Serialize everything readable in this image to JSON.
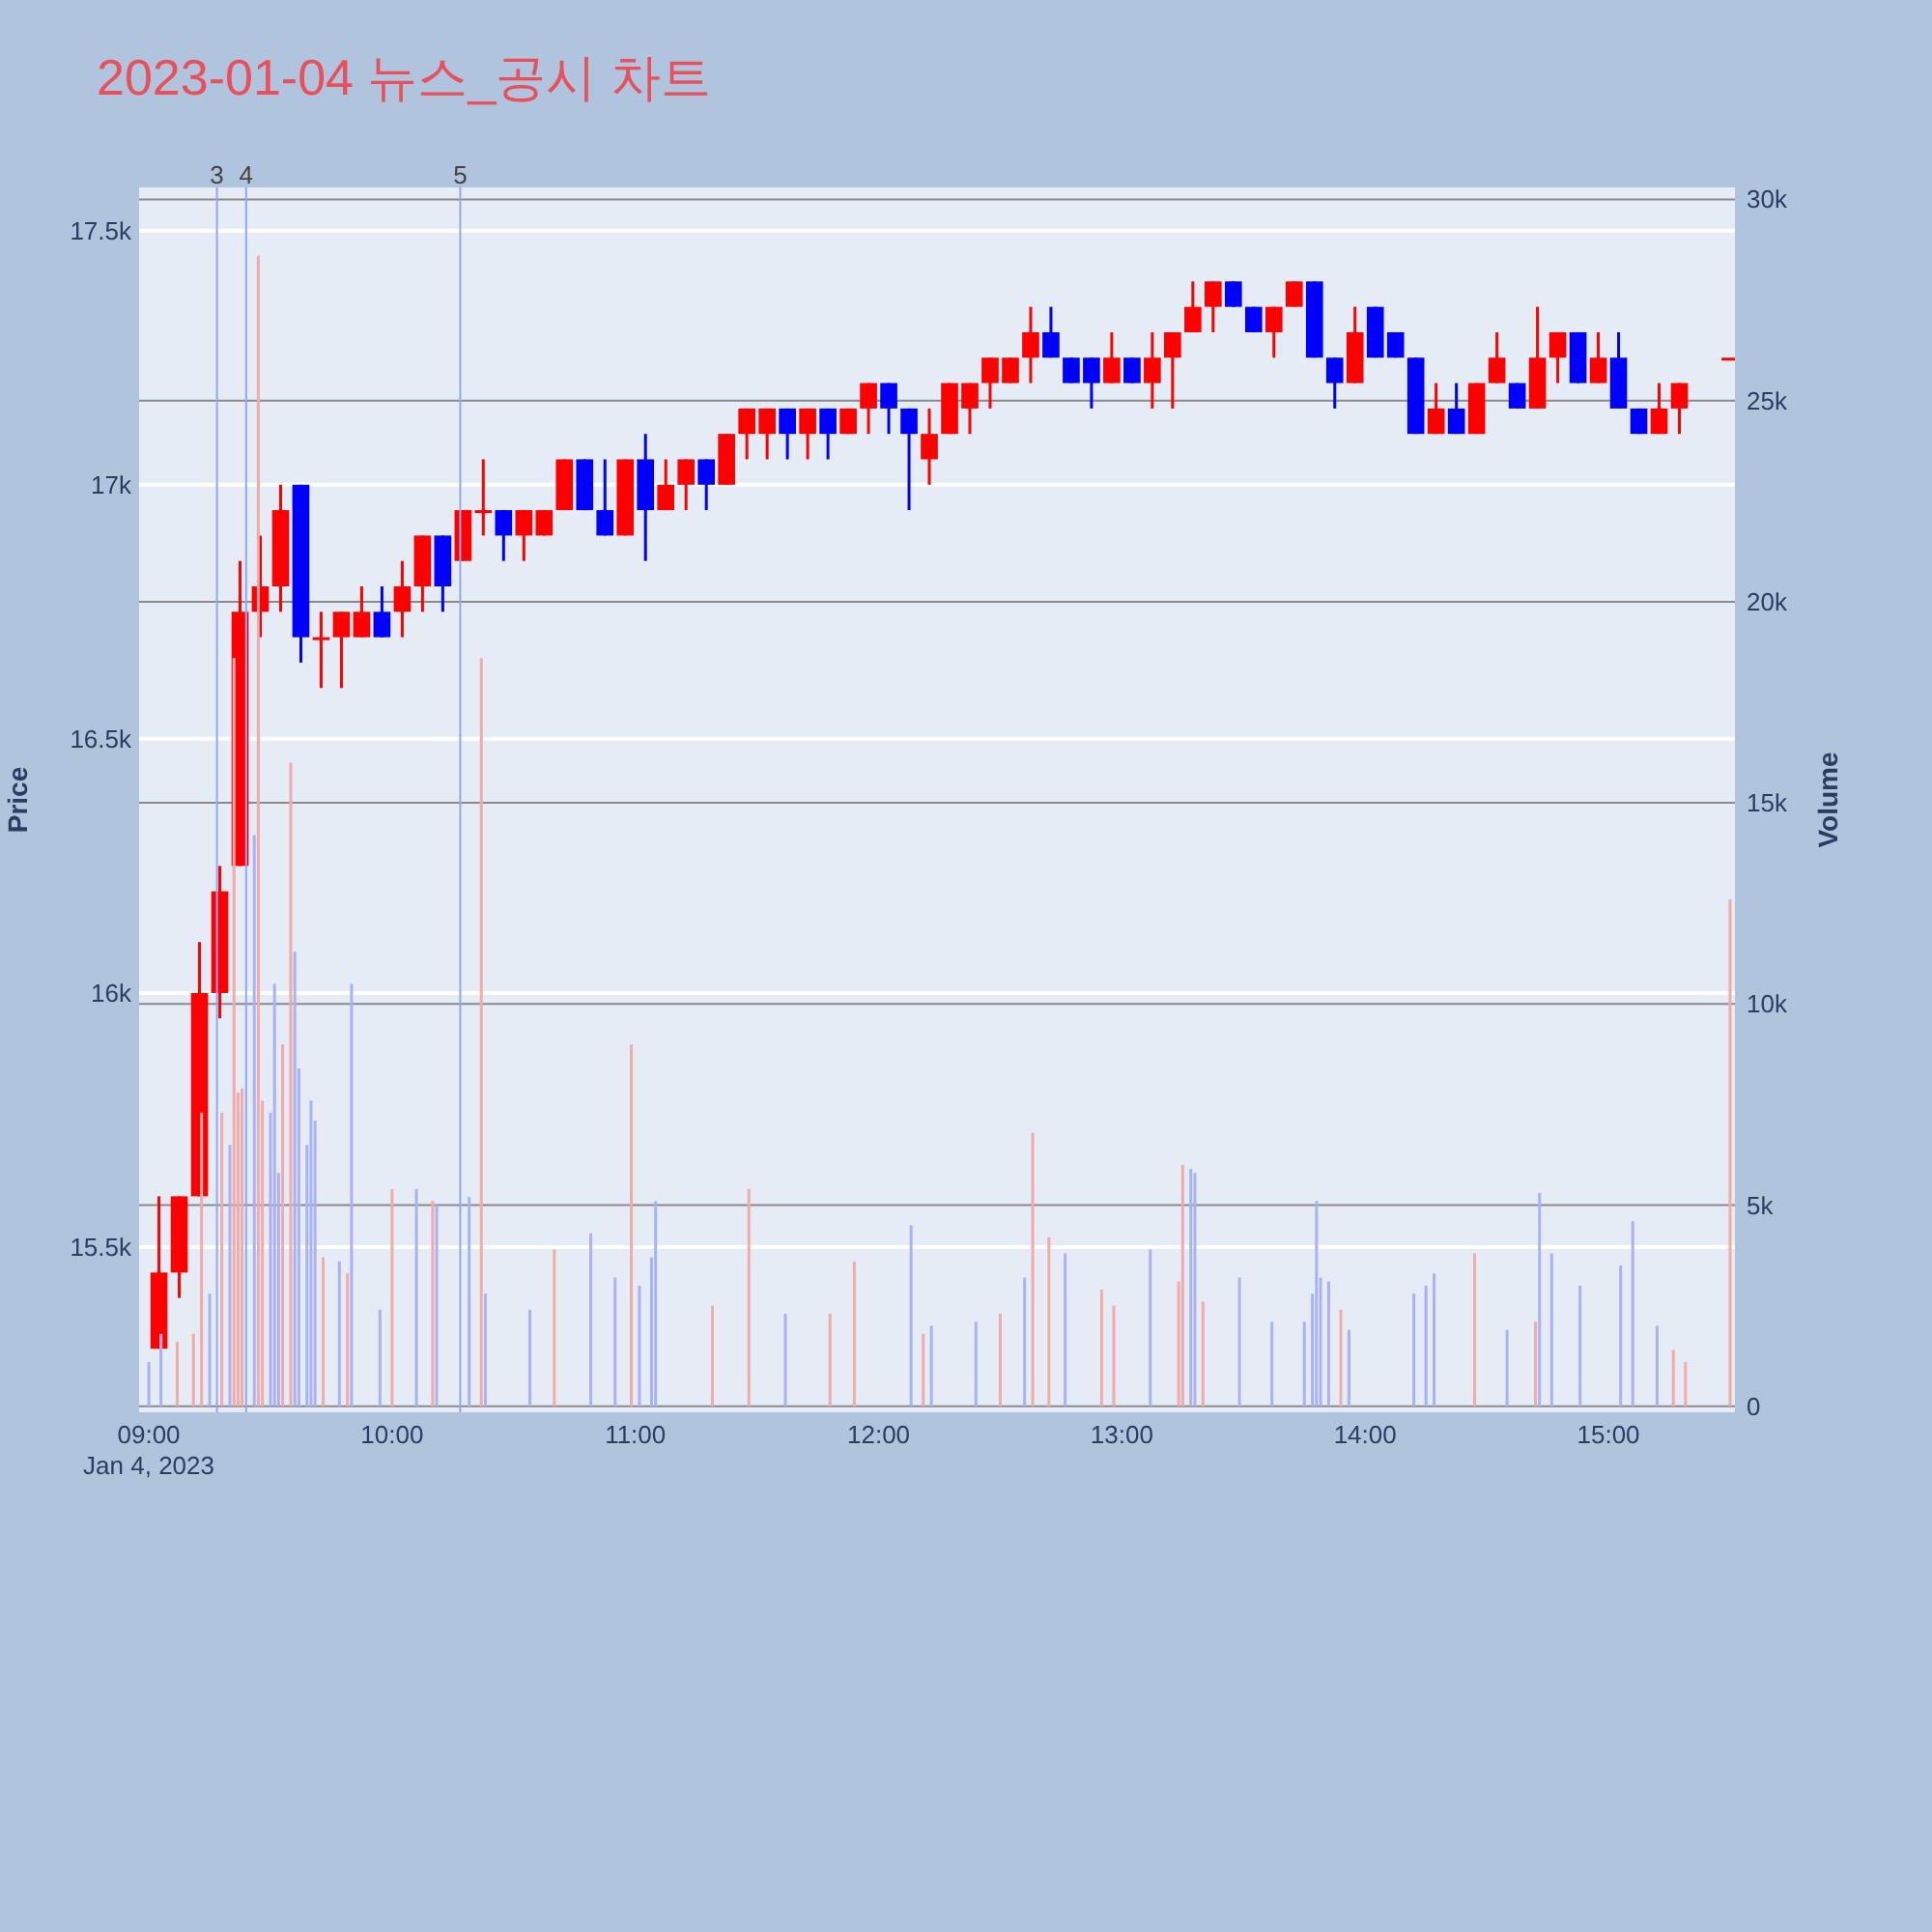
{
  "chart_data": {
    "type": "candlestick",
    "title": "2023-01-04 뉴스_공시 차트",
    "ylabel": "Price",
    "y2label": "Volume",
    "xlim": [
      8.96,
      15.52
    ],
    "xticks": [
      {
        "value": 9,
        "label": "09:00\nJan 4, 2023"
      },
      {
        "value": 10,
        "label": "10:00"
      },
      {
        "value": 11,
        "label": "11:00"
      },
      {
        "value": 12,
        "label": "12:00"
      },
      {
        "value": 13,
        "label": "13:00"
      },
      {
        "value": 14,
        "label": "14:00"
      },
      {
        "value": 15,
        "label": "15:00"
      }
    ],
    "ylim": [
      15175,
      17585
    ],
    "yticks": [
      {
        "value": 15500,
        "label": "15.5k"
      },
      {
        "value": 16000,
        "label": "16k"
      },
      {
        "value": 16500,
        "label": "16.5k"
      },
      {
        "value": 17000,
        "label": "17k"
      },
      {
        "value": 17500,
        "label": "17.5k"
      }
    ],
    "y2lim": [
      -150,
      30300
    ],
    "y2ticks": [
      0,
      {
        "value": 5000,
        "label": "5k"
      },
      {
        "value": 10000,
        "label": "10k"
      },
      {
        "value": 15000,
        "label": "15k"
      },
      {
        "value": 20000,
        "label": "20k"
      },
      {
        "value": 25000,
        "label": "25k"
      },
      {
        "value": 30000,
        "label": "30k"
      }
    ],
    "grid": "y",
    "ref_lines": [
      {
        "axis": "x",
        "value": 9.28,
        "color": "#8fa8f5"
      },
      {
        "axis": "x",
        "value": 9.4,
        "color": "#8fa8f5"
      },
      {
        "axis": "x",
        "value": 10.28,
        "color": "#8fa8f5"
      }
    ],
    "annotations": [
      "3",
      "4",
      "5"
    ],
    "series": [
      {
        "type": "bar",
        "axis": "y2",
        "color": "#f2aaaa",
        "x": [
          9.1167,
          9.1833,
          9.2167,
          9.3,
          9.35,
          9.3667,
          9.3833,
          9.45,
          9.4667,
          9.55,
          9.5833,
          9.7167,
          9.8167,
          10.0,
          10.1667,
          10.3667,
          10.6667,
          10.9833,
          11.3167,
          11.4667,
          11.8,
          11.9,
          12.1833,
          12.5,
          12.6333,
          12.7,
          12.9167,
          12.9667,
          13.2333,
          13.25,
          13.3333,
          13.9,
          14.45,
          14.7,
          15.2667,
          15.3167,
          15.5
        ],
        "values": [
          1600,
          1800,
          7300,
          7300,
          18600,
          7800,
          7900,
          28600,
          7600,
          9000,
          16000,
          3700,
          3300,
          5400,
          5100,
          18600,
          3900,
          9000,
          2500,
          5400,
          2300,
          3600,
          1800,
          2300,
          6800,
          4200,
          2900,
          2500,
          3100,
          6000,
          2600,
          2400,
          3800,
          2100,
          1400,
          1100,
          12600
        ]
      },
      {
        "type": "bar",
        "axis": "y2",
        "color": "#aab2f5",
        "x": [
          9.0,
          9.05,
          9.25,
          9.3333,
          9.4333,
          9.5,
          9.5167,
          9.5333,
          9.6,
          9.6167,
          9.65,
          9.6667,
          9.6833,
          9.7833,
          9.8333,
          9.95,
          10.1,
          10.1833,
          10.3167,
          10.3833,
          10.5667,
          10.8167,
          10.9167,
          11.0167,
          11.0667,
          11.0833,
          11.6167,
          12.1333,
          12.2167,
          12.4,
          12.6,
          12.7667,
          13.1167,
          13.2833,
          13.3,
          13.4833,
          13.6167,
          13.75,
          13.7833,
          13.8,
          13.8167,
          13.85,
          13.9333,
          14.2,
          14.25,
          14.2833,
          14.5833,
          14.7167,
          14.7667,
          14.8833,
          15.05,
          15.1,
          15.2
        ],
        "values": [
          1100,
          1800,
          2800,
          6500,
          14200,
          7300,
          10500,
          5800,
          11300,
          8400,
          6500,
          7600,
          7100,
          3600,
          10500,
          2400,
          5400,
          5000,
          5200,
          2800,
          2400,
          4300,
          3200,
          3000,
          3700,
          5100,
          2300,
          4500,
          2000,
          2100,
          3200,
          3800,
          3900,
          5900,
          5800,
          3200,
          2100,
          2100,
          2800,
          5100,
          3200,
          3100,
          1900,
          2800,
          3000,
          3300,
          1900,
          5300,
          3800,
          3000,
          3500,
          4600,
          2000
        ]
      },
      {
        "type": "candlestick",
        "colors": [
          "#ff0000",
          "#ff0000",
          "#ff0000",
          "#ff0000",
          "#ff0000",
          "#ff0000",
          "#ff0000",
          "#0000ff",
          "#ff0000",
          "#ff0000",
          "#ff0000",
          "#0000ff",
          "#ff0000",
          "#ff0000",
          "#0000ff",
          "#ff0000",
          "#ff0000",
          "#0000ff",
          "#ff0000",
          "#ff0000",
          "#ff0000",
          "#0000ff",
          "#0000ff",
          "#ff0000",
          "#0000ff",
          "#ff0000",
          "#ff0000",
          "#0000ff",
          "#ff0000",
          "#ff0000",
          "#ff0000",
          "#0000ff",
          "#ff0000",
          "#0000ff",
          "#ff0000",
          "#ff0000",
          "#0000ff",
          "#0000ff",
          "#ff0000",
          "#ff0000",
          "#ff0000",
          "#ff0000",
          "#ff0000",
          "#ff0000",
          "#0000ff",
          "#0000ff",
          "#0000ff",
          "#ff0000",
          "#0000ff",
          "#ff0000",
          "#ff0000",
          "#ff0000",
          "#ff0000",
          "#0000ff",
          "#0000ff",
          "#ff0000",
          "#ff0000",
          "#0000ff",
          "#0000ff",
          "#ff0000",
          "#0000ff",
          "#0000ff",
          "#0000ff",
          "#ff0000",
          "#0000ff",
          "#ff0000",
          "#ff0000",
          "#0000ff",
          "#ff0000",
          "#ff0000",
          "#0000ff",
          "#ff0000",
          "#0000ff",
          "#0000ff",
          "#ff0000",
          "#ff0000",
          "#ff0000"
        ],
        "x": [
          9.0417,
          9.125,
          9.2083,
          9.2917,
          9.375,
          9.4583,
          9.5417,
          9.625,
          9.7083,
          9.7917,
          9.875,
          9.9583,
          10.0417,
          10.125,
          10.2083,
          10.2917,
          10.375,
          10.4583,
          10.5417,
          10.625,
          10.7083,
          10.7917,
          10.875,
          10.9583,
          11.0417,
          11.125,
          11.2083,
          11.2917,
          11.375,
          11.4583,
          11.5417,
          11.625,
          11.7083,
          11.7917,
          11.875,
          11.9583,
          12.0417,
          12.125,
          12.2083,
          12.2917,
          12.375,
          12.4583,
          12.5417,
          12.625,
          12.7083,
          12.7917,
          12.875,
          12.9583,
          13.0417,
          13.125,
          13.2083,
          13.2917,
          13.375,
          13.4583,
          13.5417,
          13.625,
          13.7083,
          13.7917,
          13.875,
          13.9583,
          14.0417,
          14.125,
          14.2083,
          14.2917,
          14.375,
          14.4583,
          14.5417,
          14.625,
          14.7083,
          14.7917,
          14.875,
          14.9583,
          15.0417,
          15.125,
          15.2083,
          15.2917,
          15.5
        ],
        "ohlc": [
          [
            15300,
            15600,
            15300,
            15450
          ],
          [
            15450,
            15600,
            15400,
            15600
          ],
          [
            15600,
            16100,
            15600,
            16000
          ],
          [
            16000,
            16250,
            15950,
            16200
          ],
          [
            16250,
            16850,
            16250,
            16750
          ],
          [
            16750,
            16900,
            16700,
            16800
          ],
          [
            16800,
            17000,
            16750,
            16950
          ],
          [
            17000,
            17000,
            16650,
            16700
          ],
          [
            16700,
            16750,
            16600,
            16700
          ],
          [
            16700,
            16750,
            16600,
            16750
          ],
          [
            16700,
            16800,
            16700,
            16750
          ],
          [
            16750,
            16800,
            16700,
            16700
          ],
          [
            16750,
            16850,
            16700,
            16800
          ],
          [
            16800,
            16900,
            16750,
            16900
          ],
          [
            16900,
            16900,
            16750,
            16800
          ],
          [
            16850,
            16950,
            16850,
            16950
          ],
          [
            16950,
            17050,
            16900,
            16950
          ],
          [
            16950,
            16950,
            16850,
            16900
          ],
          [
            16900,
            16950,
            16850,
            16950
          ],
          [
            16900,
            16950,
            16900,
            16950
          ],
          [
            16950,
            17050,
            16950,
            17050
          ],
          [
            17050,
            17050,
            16950,
            16950
          ],
          [
            16950,
            17050,
            16900,
            16900
          ],
          [
            16900,
            17050,
            16900,
            17050
          ],
          [
            17050,
            17100,
            16850,
            16950
          ],
          [
            16950,
            17050,
            16950,
            17000
          ],
          [
            17000,
            17050,
            16950,
            17050
          ],
          [
            17050,
            17050,
            16950,
            17000
          ],
          [
            17000,
            17100,
            17000,
            17100
          ],
          [
            17100,
            17150,
            17050,
            17150
          ],
          [
            17100,
            17150,
            17050,
            17150
          ],
          [
            17150,
            17150,
            17050,
            17100
          ],
          [
            17100,
            17150,
            17050,
            17150
          ],
          [
            17150,
            17150,
            17050,
            17100
          ],
          [
            17100,
            17150,
            17100,
            17150
          ],
          [
            17150,
            17200,
            17100,
            17200
          ],
          [
            17200,
            17200,
            17100,
            17150
          ],
          [
            17150,
            17150,
            16950,
            17100
          ],
          [
            17050,
            17150,
            17000,
            17100
          ],
          [
            17100,
            17200,
            17100,
            17200
          ],
          [
            17150,
            17200,
            17100,
            17200
          ],
          [
            17200,
            17250,
            17150,
            17250
          ],
          [
            17200,
            17250,
            17200,
            17250
          ],
          [
            17250,
            17350,
            17200,
            17300
          ],
          [
            17300,
            17350,
            17250,
            17250
          ],
          [
            17250,
            17250,
            17200,
            17200
          ],
          [
            17250,
            17250,
            17150,
            17200
          ],
          [
            17200,
            17300,
            17200,
            17250
          ],
          [
            17250,
            17250,
            17200,
            17200
          ],
          [
            17200,
            17300,
            17150,
            17250
          ],
          [
            17250,
            17300,
            17150,
            17300
          ],
          [
            17300,
            17400,
            17300,
            17350
          ],
          [
            17350,
            17400,
            17300,
            17400
          ],
          [
            17400,
            17400,
            17350,
            17350
          ],
          [
            17350,
            17350,
            17300,
            17300
          ],
          [
            17300,
            17350,
            17250,
            17350
          ],
          [
            17350,
            17400,
            17350,
            17400
          ],
          [
            17400,
            17400,
            17250,
            17250
          ],
          [
            17250,
            17250,
            17150,
            17200
          ],
          [
            17200,
            17350,
            17200,
            17300
          ],
          [
            17350,
            17350,
            17250,
            17250
          ],
          [
            17300,
            17300,
            17250,
            17250
          ],
          [
            17250,
            17250,
            17100,
            17100
          ],
          [
            17100,
            17200,
            17100,
            17150
          ],
          [
            17150,
            17200,
            17100,
            17100
          ],
          [
            17100,
            17200,
            17100,
            17200
          ],
          [
            17200,
            17300,
            17200,
            17250
          ],
          [
            17200,
            17200,
            17150,
            17150
          ],
          [
            17150,
            17350,
            17150,
            17250
          ],
          [
            17250,
            17300,
            17200,
            17300
          ],
          [
            17300,
            17300,
            17200,
            17200
          ],
          [
            17200,
            17300,
            17200,
            17250
          ],
          [
            17250,
            17300,
            17150,
            17150
          ],
          [
            17150,
            17150,
            17100,
            17100
          ],
          [
            17100,
            17200,
            17100,
            17150
          ],
          [
            17150,
            17200,
            17100,
            17200
          ],
          [
            17250,
            17250,
            17250,
            17250
          ]
        ]
      }
    ]
  }
}
